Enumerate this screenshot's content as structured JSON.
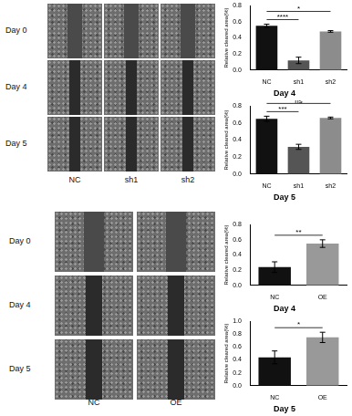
{
  "figure_panels": [
    {
      "row_labels": [
        "Day 0",
        "Day 4",
        "Day 5"
      ],
      "column_labels": [
        "NC",
        "sh1",
        "sh2"
      ]
    },
    {
      "row_labels": [
        "Day 0",
        "Day 4",
        "Day 5"
      ],
      "column_labels": [
        "NC",
        "OE"
      ]
    }
  ],
  "chart_data": [
    {
      "type": "bar",
      "title": "Day 4",
      "y_label": "Relative cleared area(%)",
      "categories": [
        "NC",
        "sh1",
        "sh2"
      ],
      "values": [
        0.55,
        0.12,
        0.48
      ],
      "errors": [
        0.02,
        0.04,
        0.01
      ],
      "colors": [
        "#111111",
        "#555555",
        "#8c8c8c"
      ],
      "ylim": [
        0,
        0.8
      ],
      "yticks": [
        {
          "value": 0,
          "label": "0.0"
        },
        {
          "value": 0.2,
          "label": "0.2"
        },
        {
          "value": 0.4,
          "label": "0.4"
        },
        {
          "value": 0.6,
          "label": "0.6"
        },
        {
          "value": 0.8,
          "label": "0.8"
        }
      ],
      "grid": false,
      "annotations": [
        {
          "from": "NC",
          "to": "sh1",
          "text": "****"
        },
        {
          "from": "NC",
          "to": "sh2",
          "text": "*"
        }
      ]
    },
    {
      "type": "bar",
      "title": "Day 5",
      "y_label": "Relative cleared area(%)",
      "categories": [
        "NC",
        "sh1",
        "sh2"
      ],
      "values": [
        0.65,
        0.32,
        0.66
      ],
      "errors": [
        0.03,
        0.03,
        0.01
      ],
      "colors": [
        "#111111",
        "#555555",
        "#8c8c8c"
      ],
      "ylim": [
        0,
        0.8
      ],
      "yticks": [
        {
          "value": 0,
          "label": "0.0"
        },
        {
          "value": 0.2,
          "label": "0.2"
        },
        {
          "value": 0.4,
          "label": "0.4"
        },
        {
          "value": 0.6,
          "label": "0.6"
        },
        {
          "value": 0.8,
          "label": "0.8"
        }
      ],
      "grid": false,
      "annotations": [
        {
          "from": "NC",
          "to": "sh1",
          "text": "***"
        },
        {
          "from": "NC",
          "to": "sh2",
          "text": "ns"
        }
      ]
    },
    {
      "type": "bar",
      "title": "Day 4",
      "y_label": "Relative cleared area(%)",
      "categories": [
        "NC",
        "OE"
      ],
      "values": [
        0.24,
        0.55
      ],
      "errors": [
        0.07,
        0.05
      ],
      "colors": [
        "#111111",
        "#999999"
      ],
      "ylim": [
        0,
        0.8
      ],
      "yticks": [
        {
          "value": 0,
          "label": "0.0"
        },
        {
          "value": 0.2,
          "label": "0.2"
        },
        {
          "value": 0.4,
          "label": "0.4"
        },
        {
          "value": 0.6,
          "label": "0.6"
        },
        {
          "value": 0.8,
          "label": "0.8"
        }
      ],
      "grid": false,
      "annotations": [
        {
          "from": "NC",
          "to": "OE",
          "text": "**"
        }
      ]
    },
    {
      "type": "bar",
      "title": "Day 5",
      "y_label": "Relative cleared area(%)",
      "categories": [
        "NC",
        "OE"
      ],
      "values": [
        0.44,
        0.75
      ],
      "errors": [
        0.1,
        0.08
      ],
      "colors": [
        "#111111",
        "#999999"
      ],
      "ylim": [
        0,
        1
      ],
      "yticks": [
        {
          "value": 0,
          "label": "0.0"
        },
        {
          "value": 0.2,
          "label": "0.2"
        },
        {
          "value": 0.4,
          "label": "0.4"
        },
        {
          "value": 0.6,
          "label": "0.6"
        },
        {
          "value": 0.8,
          "label": "0.8"
        },
        {
          "value": 1,
          "label": "1.0"
        }
      ],
      "grid": false,
      "annotations": [
        {
          "from": "NC",
          "to": "OE",
          "text": "*"
        }
      ]
    }
  ]
}
